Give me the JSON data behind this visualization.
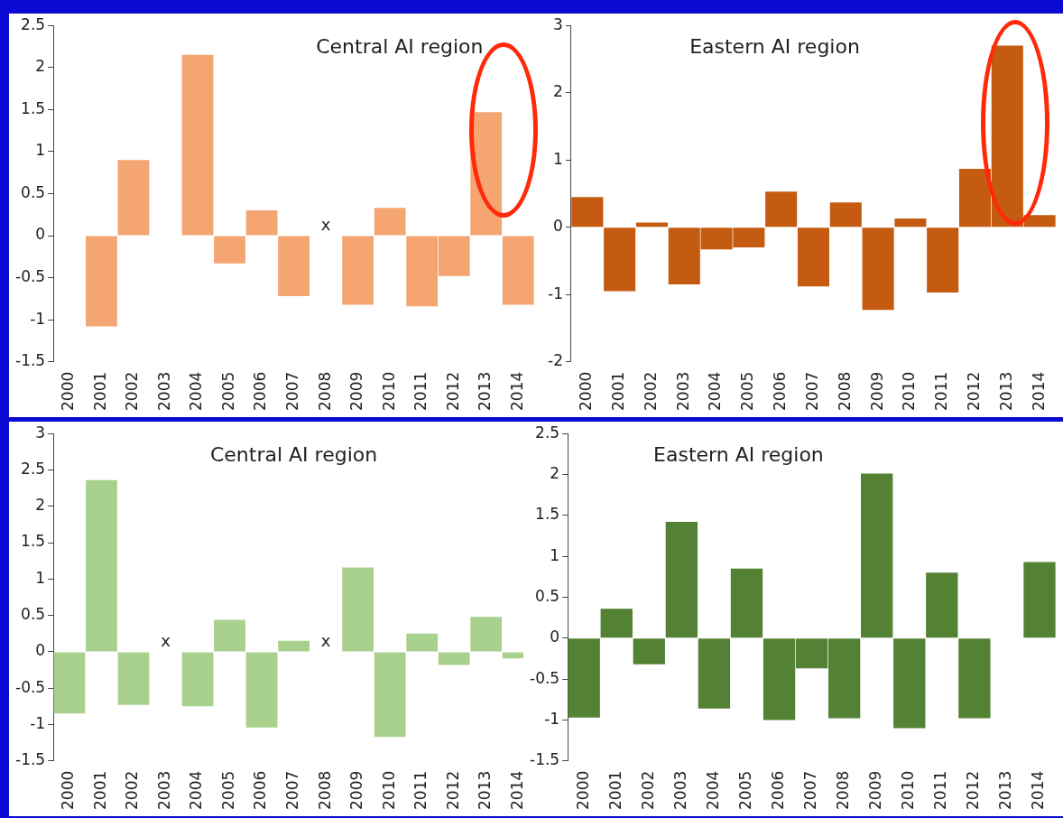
{
  "chart_data": [
    {
      "type": "bar",
      "title": "Central AI region",
      "categories": [
        "2000",
        "2001",
        "2002",
        "2003",
        "2004",
        "2005",
        "2006",
        "2007",
        "2008",
        "2009",
        "2010",
        "2011",
        "2012",
        "2013",
        "2014"
      ],
      "values": [
        0,
        -1.08,
        0.9,
        0,
        2.15,
        -0.33,
        0.3,
        -0.72,
        null,
        -0.82,
        0.33,
        -0.84,
        -0.48,
        1.47,
        -0.82
      ],
      "color": "#f4a572",
      "ylim": [
        -1.5,
        2.5
      ],
      "yticks": [
        -1.5,
        -1,
        -0.5,
        0,
        0.5,
        1,
        1.5,
        2,
        2.5
      ],
      "annotations": [
        "x"
      ]
    },
    {
      "type": "bar",
      "title": "Eastern AI region",
      "categories": [
        "2000",
        "2001",
        "2002",
        "2003",
        "2004",
        "2005",
        "2006",
        "2007",
        "2008",
        "2009",
        "2010",
        "2011",
        "2012",
        "2013",
        "2014"
      ],
      "values": [
        0.45,
        -0.95,
        0.07,
        -0.85,
        -0.33,
        -0.3,
        0.53,
        -0.88,
        0.37,
        -1.23,
        0.13,
        -0.97,
        0.87,
        2.7,
        0.18
      ],
      "color": "#c55a11",
      "ylim": [
        -2,
        3
      ],
      "yticks": [
        -2,
        -1,
        0,
        1,
        2,
        3
      ]
    },
    {
      "type": "bar",
      "title": "Central AI region",
      "categories": [
        "2000",
        "2001",
        "2002",
        "2003",
        "2004",
        "2005",
        "2006",
        "2007",
        "2008",
        "2009",
        "2010",
        "2011",
        "2012",
        "2013",
        "2014"
      ],
      "values": [
        -0.85,
        2.36,
        -0.73,
        null,
        -0.75,
        0.44,
        -1.04,
        0.15,
        null,
        1.16,
        -1.17,
        0.25,
        -0.18,
        0.48,
        -0.09
      ],
      "color": "#a9d18e",
      "ylim": [
        -1.5,
        3
      ],
      "yticks": [
        -1.5,
        -1,
        -0.5,
        0,
        0.5,
        1,
        1.5,
        2,
        2.5,
        3
      ],
      "annotations": [
        "x",
        "x"
      ]
    },
    {
      "type": "bar",
      "title": "Eastern AI region",
      "categories": [
        "2000",
        "2001",
        "2002",
        "2003",
        "2004",
        "2005",
        "2006",
        "2007",
        "2008",
        "2009",
        "2010",
        "2011",
        "2012",
        "2013",
        "2014"
      ],
      "values": [
        -0.97,
        0.36,
        -0.32,
        1.42,
        -0.86,
        0.85,
        -1,
        -0.37,
        -0.98,
        2.01,
        -1.1,
        0.8,
        -0.98,
        0,
        0.93
      ],
      "color": "#548235",
      "ylim": [
        -1.5,
        2.5
      ],
      "yticks": [
        -1.5,
        -1,
        -0.5,
        0,
        0.5,
        1,
        1.5,
        2,
        2.5
      ]
    }
  ]
}
